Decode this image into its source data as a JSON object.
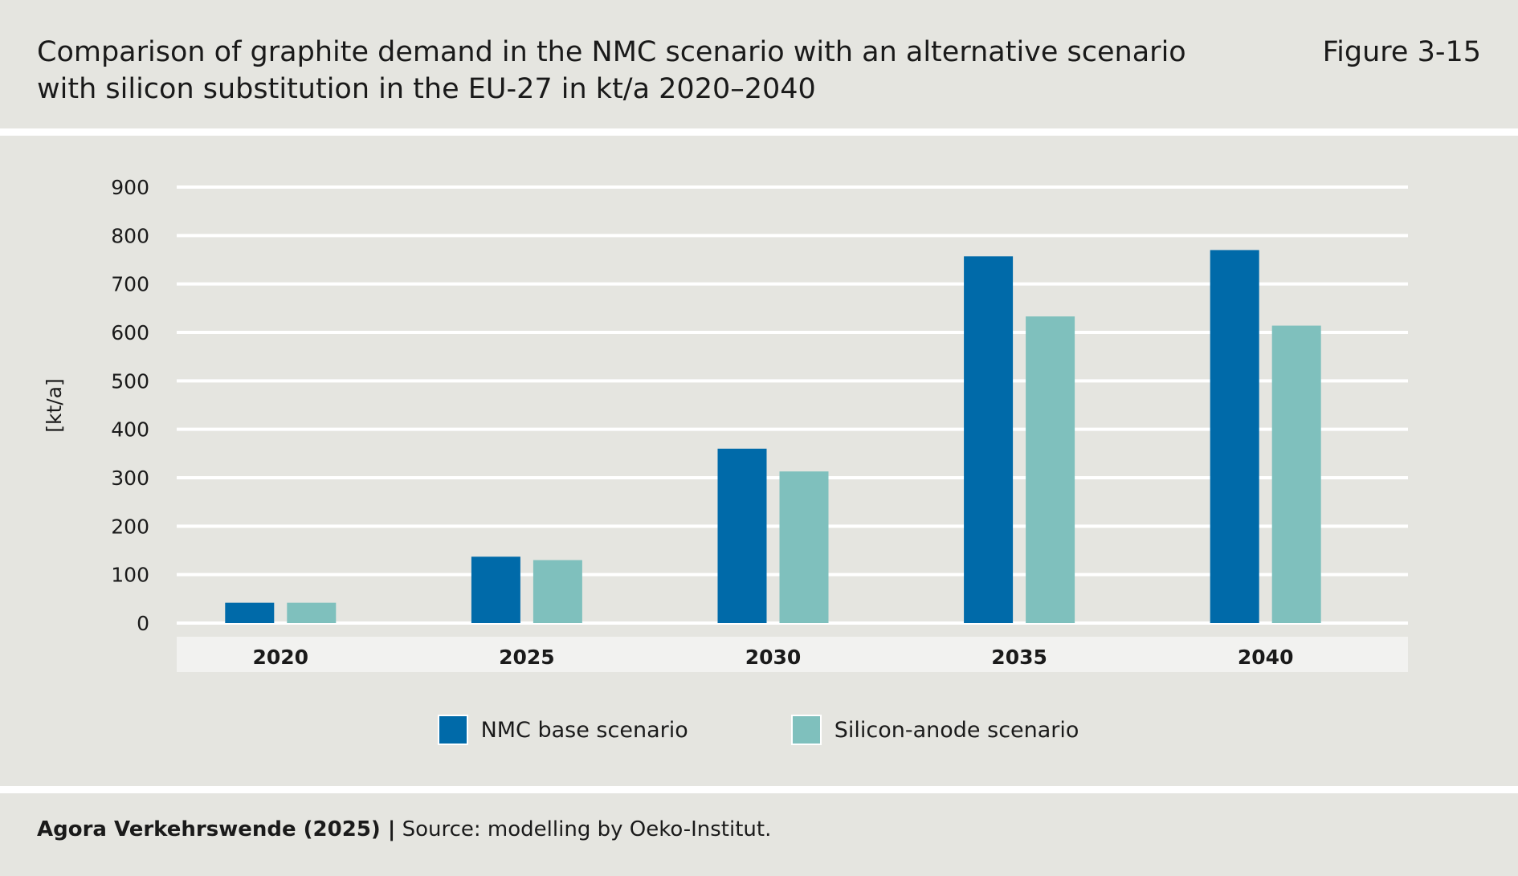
{
  "header": {
    "title_line1": "Comparison of graphite demand in the NMC scenario with an alternative scenario",
    "title_line2": "with silicon substitution in the EU-27 in kt/a 2020–2040",
    "figure": "Figure 3-15"
  },
  "chart_data": {
    "type": "bar",
    "categories": [
      "2020",
      "2025",
      "2030",
      "2035",
      "2040"
    ],
    "series": [
      {
        "name": "NMC base scenario",
        "color": "#006aa9",
        "values": [
          42,
          137,
          360,
          757,
          770
        ]
      },
      {
        "name": "Silicon-anode scenario",
        "color": "#7fc0bd",
        "values": [
          42,
          130,
          313,
          633,
          614
        ]
      }
    ],
    "ylabel": "[kt/a]",
    "ylim": [
      0,
      900
    ],
    "yticks": [
      0,
      100,
      200,
      300,
      400,
      500,
      600,
      700,
      800,
      900
    ],
    "grid": true,
    "legend": "bottom"
  },
  "footer": {
    "credit": "Agora Verkehrswende (2025) |",
    "source": "Source: modelling by Oeko-Institut."
  }
}
